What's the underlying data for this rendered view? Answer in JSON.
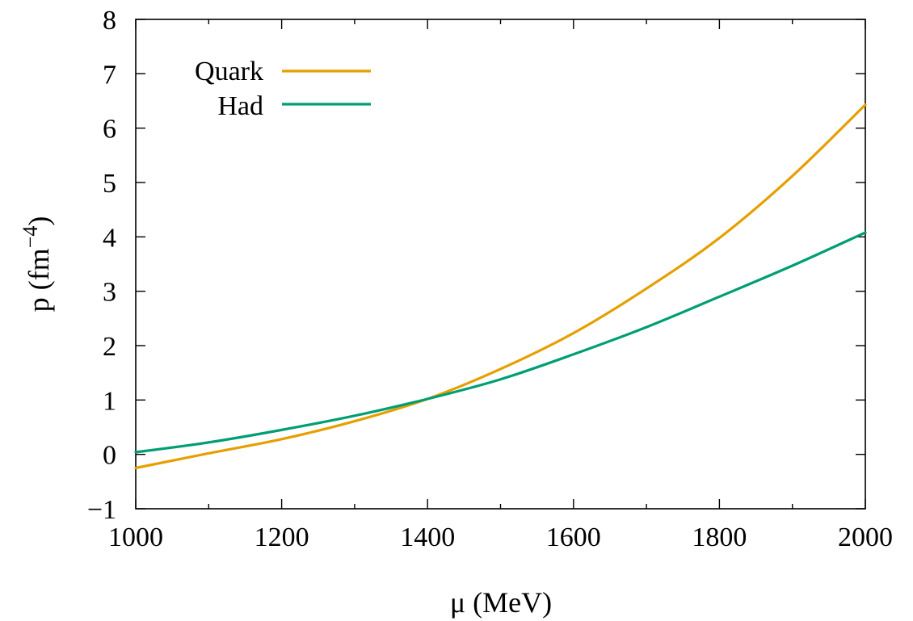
{
  "chart_data": {
    "type": "line",
    "title": "",
    "xlabel": "μ (MeV)",
    "ylabel_base": "p (fm",
    "ylabel_exp": "−4",
    "ylabel_close": ")",
    "xlim": [
      1000,
      2000
    ],
    "ylim": [
      -1,
      8
    ],
    "xticks": [
      {
        "value": 1000,
        "label": "1000"
      },
      {
        "value": 1200,
        "label": "1200"
      },
      {
        "value": 1400,
        "label": "1400"
      },
      {
        "value": 1600,
        "label": "1600"
      },
      {
        "value": 1800,
        "label": "1800"
      },
      {
        "value": 2000,
        "label": "2000"
      }
    ],
    "xminor": [
      1100,
      1300,
      1500,
      1700,
      1900
    ],
    "yticks": [
      {
        "value": -1,
        "label": "−1"
      },
      {
        "value": 0,
        "label": "0"
      },
      {
        "value": 1,
        "label": "1"
      },
      {
        "value": 2,
        "label": "2"
      },
      {
        "value": 3,
        "label": "3"
      },
      {
        "value": 4,
        "label": "4"
      },
      {
        "value": 5,
        "label": "5"
      },
      {
        "value": 6,
        "label": "6"
      },
      {
        "value": 7,
        "label": "7"
      },
      {
        "value": 8,
        "label": "8"
      }
    ],
    "grid": false,
    "legend_position": "top-left",
    "series": [
      {
        "name": "Quark",
        "color": "#e69f00",
        "x": [
          1000,
          1100,
          1200,
          1300,
          1400,
          1500,
          1600,
          1700,
          1800,
          1900,
          2000
        ],
        "y": [
          -0.25,
          0.02,
          0.28,
          0.61,
          1.02,
          1.57,
          2.23,
          3.05,
          3.98,
          5.12,
          6.43
        ]
      },
      {
        "name": "Had",
        "color": "#009e73",
        "x": [
          1000,
          1100,
          1200,
          1300,
          1400,
          1500,
          1600,
          1700,
          1800,
          1900,
          2000
        ],
        "y": [
          0.04,
          0.22,
          0.45,
          0.71,
          1.02,
          1.38,
          1.84,
          2.34,
          2.9,
          3.47,
          4.08
        ]
      }
    ]
  }
}
